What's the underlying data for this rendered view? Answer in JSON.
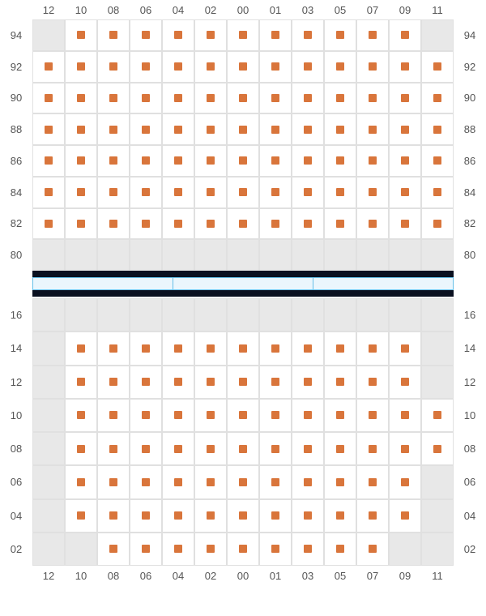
{
  "style": {
    "marker_color": "#d9753b",
    "empty_color": "#e8e8e8",
    "grid_border_color": "#e0e0e0",
    "label_color": "#555555",
    "label_fontsize": 13,
    "divider_black": "#0a1020",
    "divider_blue_border": "#66c0e8",
    "divider_blue_fill": "#eaf6fd",
    "divider_segments": 3
  },
  "col_labels": [
    "12",
    "10",
    "08",
    "06",
    "04",
    "02",
    "00",
    "01",
    "03",
    "05",
    "07",
    "09",
    "11"
  ],
  "upper": {
    "row_labels": [
      "94",
      "92",
      "90",
      "88",
      "86",
      "84",
      "82",
      "80"
    ],
    "row_label_heights": 8,
    "grid": [
      [
        0,
        1,
        1,
        1,
        1,
        1,
        1,
        1,
        1,
        1,
        1,
        1,
        0
      ],
      [
        1,
        1,
        1,
        1,
        1,
        1,
        1,
        1,
        1,
        1,
        1,
        1,
        1
      ],
      [
        1,
        1,
        1,
        1,
        1,
        1,
        1,
        1,
        1,
        1,
        1,
        1,
        1
      ],
      [
        1,
        1,
        1,
        1,
        1,
        1,
        1,
        1,
        1,
        1,
        1,
        1,
        1
      ],
      [
        1,
        1,
        1,
        1,
        1,
        1,
        1,
        1,
        1,
        1,
        1,
        1,
        1
      ],
      [
        1,
        1,
        1,
        1,
        1,
        1,
        1,
        1,
        1,
        1,
        1,
        1,
        1
      ],
      [
        1,
        1,
        1,
        1,
        1,
        1,
        1,
        1,
        1,
        1,
        1,
        1,
        1
      ],
      [
        0,
        0,
        0,
        0,
        0,
        0,
        0,
        0,
        0,
        0,
        0,
        0,
        0
      ]
    ]
  },
  "lower": {
    "row_labels": [
      "16",
      "14",
      "12",
      "10",
      "08",
      "06",
      "04",
      "02"
    ],
    "grid": [
      [
        0,
        0,
        0,
        0,
        0,
        0,
        0,
        0,
        0,
        0,
        0,
        0,
        0
      ],
      [
        0,
        1,
        1,
        1,
        1,
        1,
        1,
        1,
        1,
        1,
        1,
        1,
        0
      ],
      [
        0,
        1,
        1,
        1,
        1,
        1,
        1,
        1,
        1,
        1,
        1,
        1,
        0
      ],
      [
        0,
        1,
        1,
        1,
        1,
        1,
        1,
        1,
        1,
        1,
        1,
        1,
        1
      ],
      [
        0,
        1,
        1,
        1,
        1,
        1,
        1,
        1,
        1,
        1,
        1,
        1,
        1
      ],
      [
        0,
        1,
        1,
        1,
        1,
        1,
        1,
        1,
        1,
        1,
        1,
        1,
        0
      ],
      [
        0,
        1,
        1,
        1,
        1,
        1,
        1,
        1,
        1,
        1,
        1,
        1,
        0
      ],
      [
        0,
        0,
        1,
        1,
        1,
        1,
        1,
        1,
        1,
        1,
        1,
        0,
        0
      ]
    ]
  }
}
